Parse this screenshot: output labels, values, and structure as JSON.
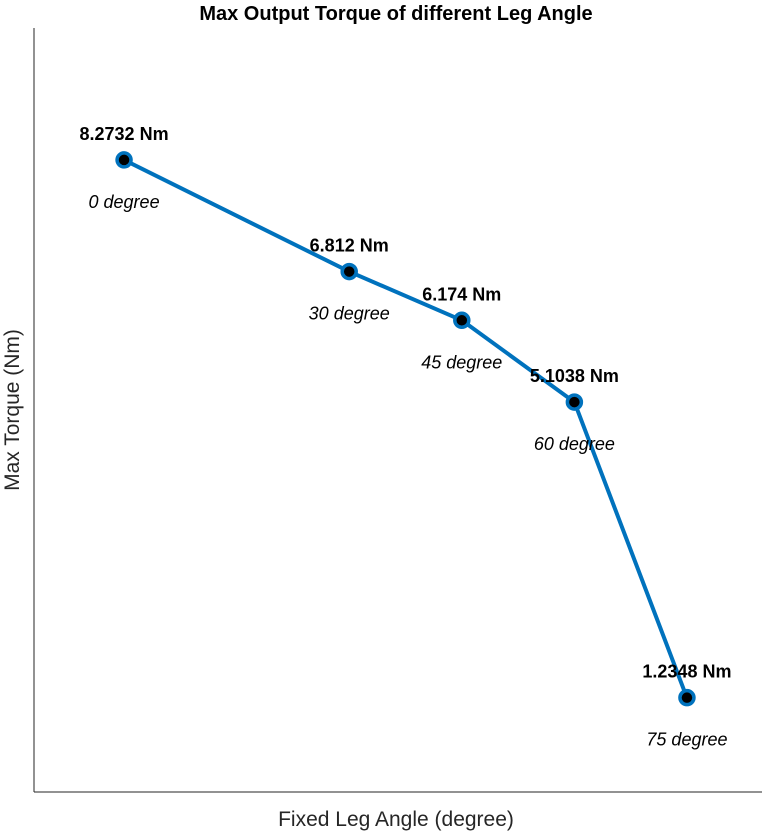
{
  "chart_data": {
    "type": "line",
    "title": "Max Output Torque of different Leg Angle",
    "xlabel": "Fixed Leg Angle (degree)",
    "ylabel": "Max Torque (Nm)",
    "x": [
      0,
      30,
      45,
      60,
      75
    ],
    "xlim": [
      -12,
      85
    ],
    "ylim": [
      0,
      10
    ],
    "grid": false,
    "series": [
      {
        "values": [
          8.2732,
          6.812,
          6.174,
          5.1038,
          1.2348
        ],
        "color": "#0072bd",
        "marker_color": "#000000"
      }
    ],
    "value_labels": [
      "8.2732 Nm",
      "6.812 Nm",
      "6.174 Nm",
      "5.1038 Nm",
      "1.2348 Nm"
    ],
    "angle_labels": [
      "0 degree",
      "30 degree",
      "45 degree",
      "60 degree",
      "75 degree"
    ]
  }
}
